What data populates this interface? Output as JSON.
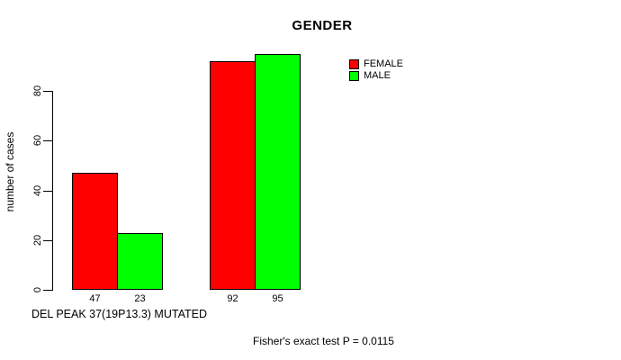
{
  "window": {
    "background": "#ffffff",
    "text_color": "#000000"
  },
  "chart_data": {
    "type": "bar",
    "title": "GENDER",
    "ylabel": "number of cases",
    "xlabel": "",
    "x_axis_note": "DEL PEAK 37(19P13.3) MUTATED",
    "annotation": "Fisher's exact test P = 0.0115",
    "categories": [
      "",
      ""
    ],
    "series": [
      {
        "name": "FEMALE",
        "color": "#FF0000",
        "values": [
          47,
          92
        ]
      },
      {
        "name": "MALE",
        "color": "#00FF00",
        "values": [
          23,
          95
        ]
      }
    ],
    "bar_value_labels": [
      [
        "47",
        "23"
      ],
      [
        "92",
        "95"
      ]
    ],
    "yticks": [
      0,
      20,
      40,
      60,
      80
    ],
    "ylim": [
      0,
      96
    ],
    "grid": false,
    "legend_position": "top-right",
    "axis_color": "#000000",
    "bar_border_color": "#000000"
  }
}
